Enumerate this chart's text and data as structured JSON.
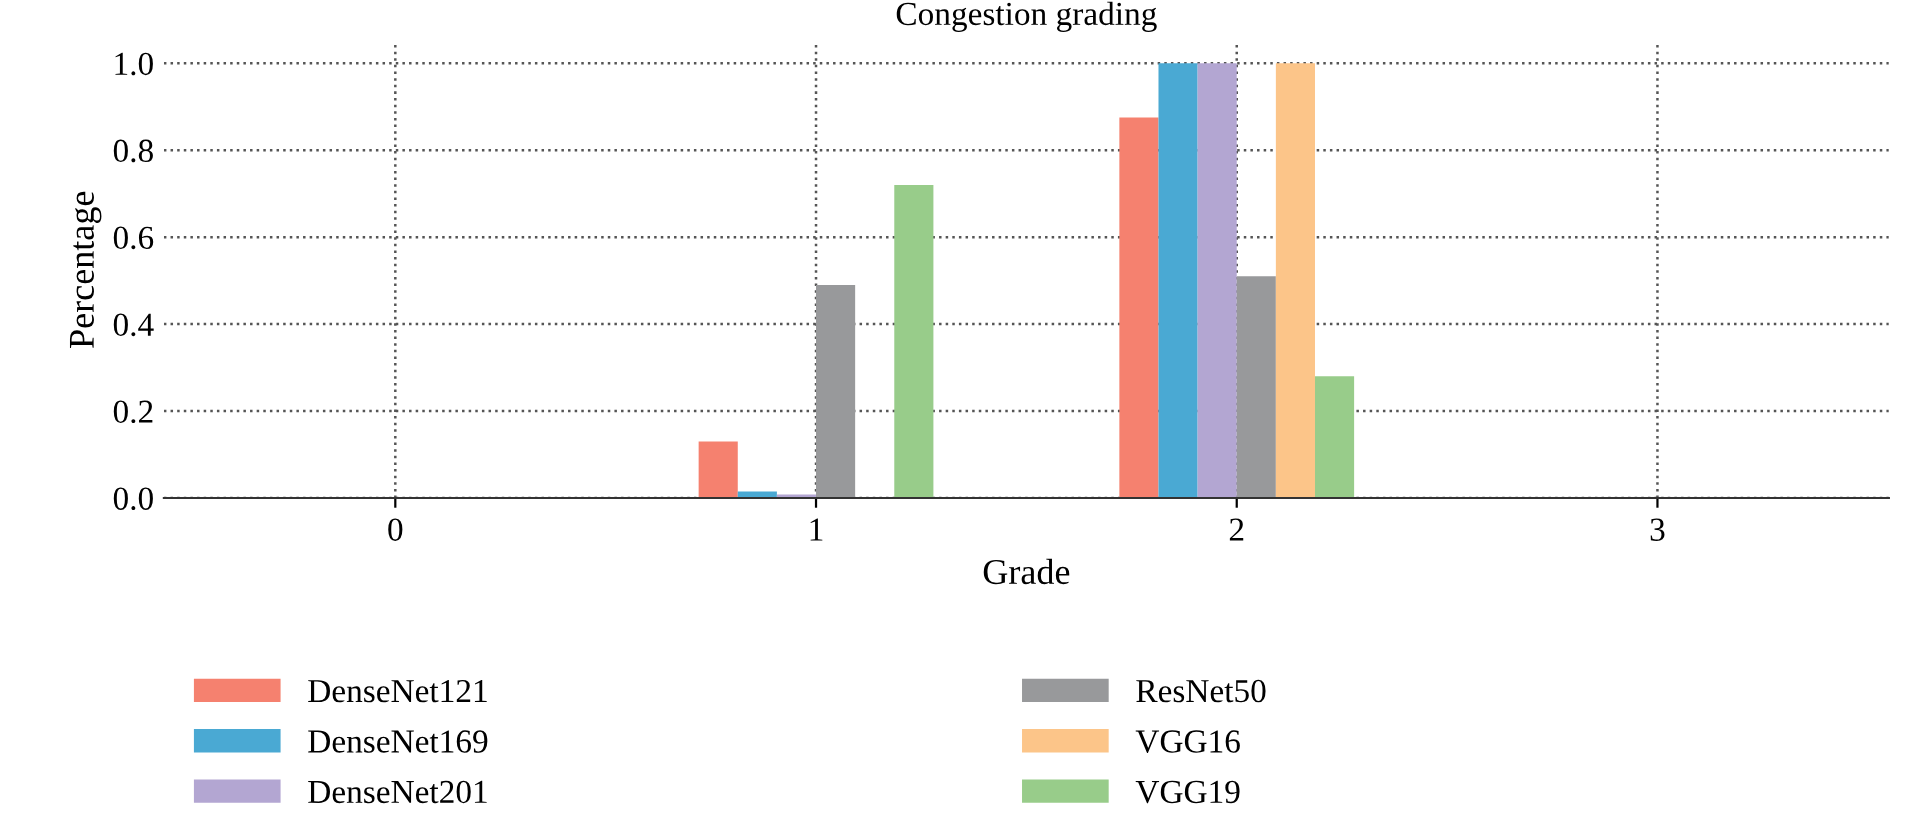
{
  "chart_data": {
    "type": "bar",
    "title": "Congestion grading",
    "xlabel": "Grade",
    "ylabel": "Percentage",
    "categories": [
      "0",
      "1",
      "2",
      "3"
    ],
    "series": [
      {
        "name": "DenseNet121",
        "color": "#f5816f",
        "values": [
          0,
          0.13,
          0.875,
          0
        ]
      },
      {
        "name": "DenseNet169",
        "color": "#4aa9d3",
        "values": [
          0,
          0.015,
          1.0,
          0
        ]
      },
      {
        "name": "DenseNet201",
        "color": "#b3a6d2",
        "values": [
          0,
          0.008,
          1.0,
          0
        ]
      },
      {
        "name": "ResNet50",
        "color": "#98999b",
        "values": [
          0,
          0.49,
          0.51,
          0
        ]
      },
      {
        "name": "VGG16",
        "color": "#fcc589",
        "values": [
          0,
          0,
          1.0,
          0
        ]
      },
      {
        "name": "VGG19",
        "color": "#98cc8a",
        "values": [
          0,
          0.72,
          0.28,
          0
        ]
      }
    ],
    "ylim": [
      0,
      1.05
    ],
    "yticks": [
      {
        "value": 0,
        "label": "0.0"
      },
      {
        "value": 0.2,
        "label": "0.2"
      },
      {
        "value": 0.4,
        "label": "0.4"
      },
      {
        "value": 0.6,
        "label": "0.6"
      },
      {
        "value": 0.8,
        "label": "0.8"
      },
      {
        "value": 1.0,
        "label": "1.0"
      }
    ],
    "grid": true,
    "legend": "bottom",
    "line_style": "dotted"
  }
}
